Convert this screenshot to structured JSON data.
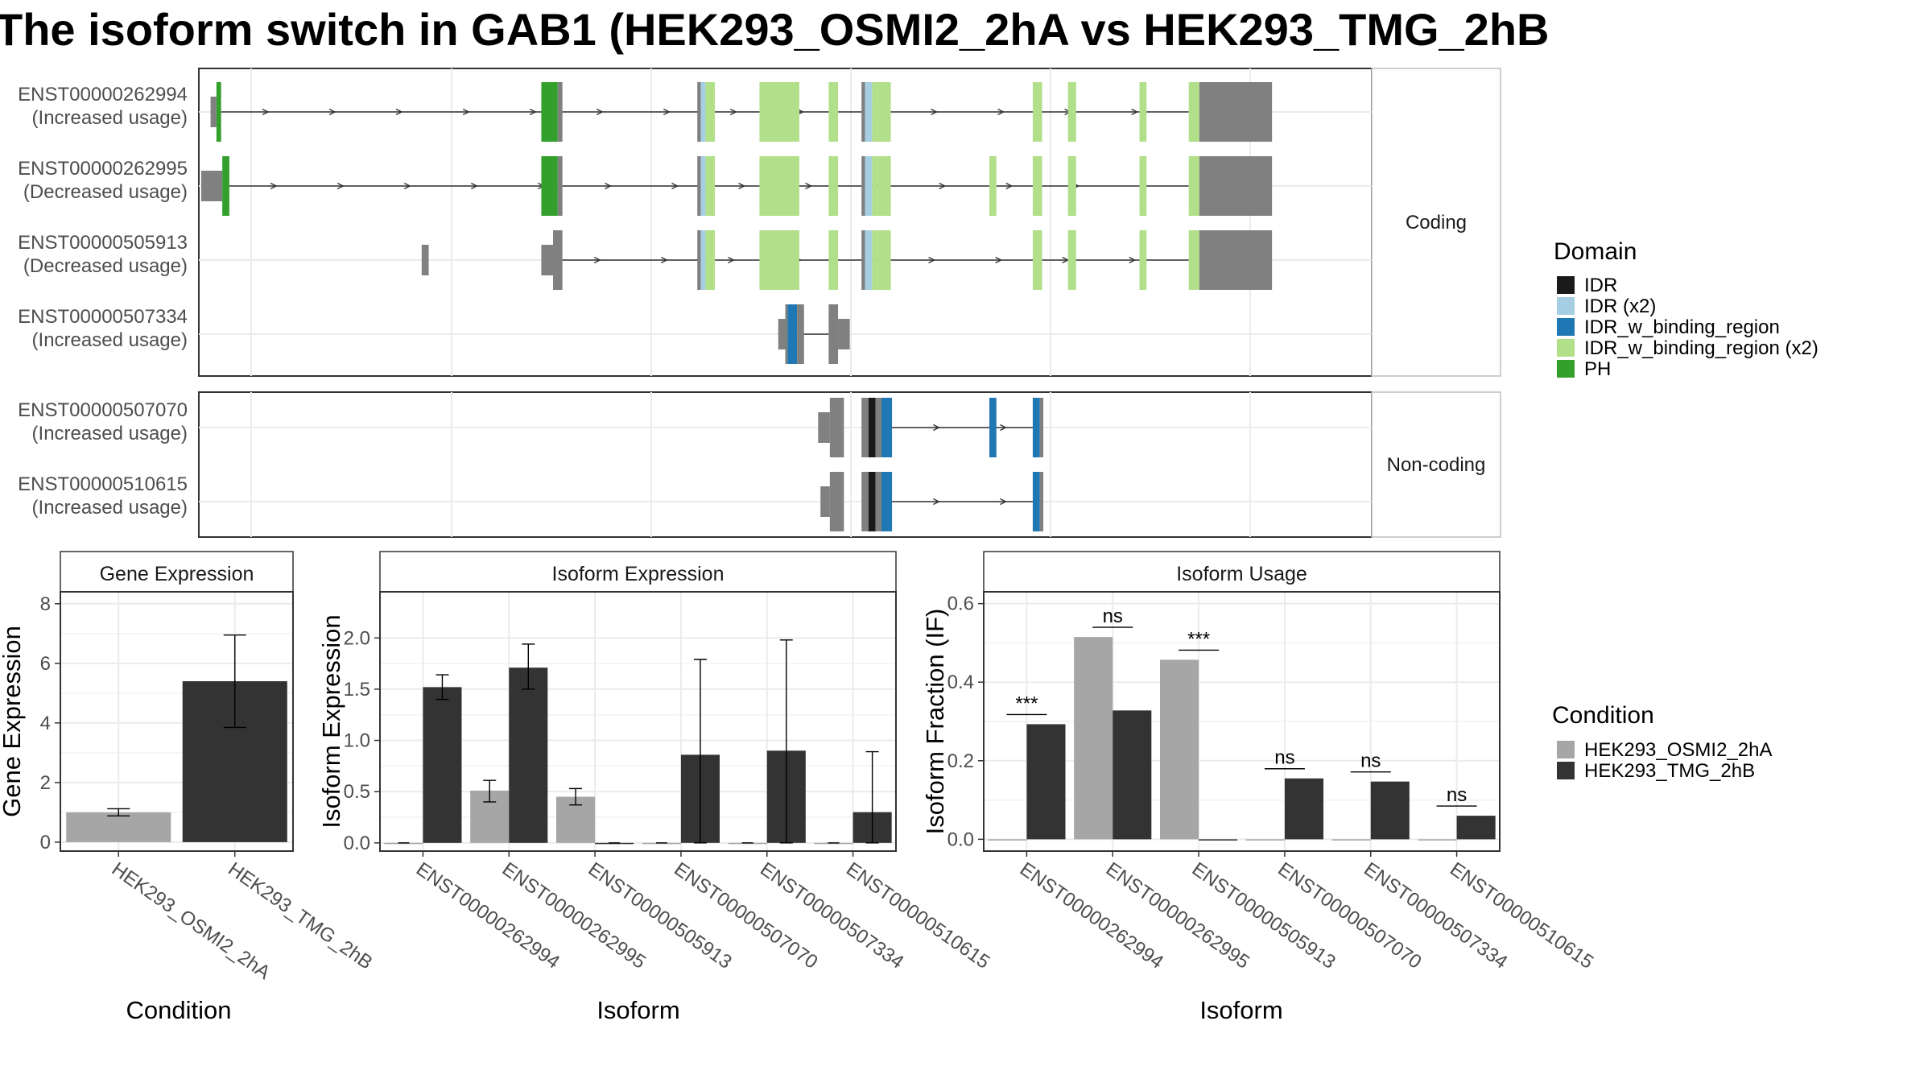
{
  "title": "The isoform switch in GAB1 (HEK293_OSMI2_2hA vs HEK293_TMG_2hB",
  "colors": {
    "IDR": "#1a1a1a",
    "IDR (x2)": "#a6cee3",
    "IDR_w_binding_region": "#1f78b4",
    "IDR_w_binding_region (x2)": "#b2df8a",
    "PH": "#33a02c",
    "utr": "#808080",
    "cond1": "#a6a6a6",
    "cond2": "#333333"
  },
  "structure": {
    "facets": [
      {
        "label": "Coding",
        "isoforms": [
          {
            "id": "ENST00000262994",
            "note": "(Increased usage)",
            "exons": [
              {
                "s": 10,
                "e": 15,
                "c": "utr",
                "t": "thin"
              },
              {
                "s": 15,
                "e": 19,
                "c": "PH"
              },
              {
                "s": 292,
                "e": 306,
                "c": "PH"
              },
              {
                "s": 306,
                "e": 310,
                "c": "utr"
              },
              {
                "s": 425,
                "e": 428,
                "c": "utr"
              },
              {
                "s": 428,
                "e": 432,
                "c": "IDR (x2)"
              },
              {
                "s": 432,
                "e": 440,
                "c": "IDR_w_binding_region (x2)"
              },
              {
                "s": 478,
                "e": 512,
                "c": "IDR_w_binding_region (x2)"
              },
              {
                "s": 537,
                "e": 545,
                "c": "IDR_w_binding_region (x2)"
              },
              {
                "s": 565,
                "e": 568,
                "c": "utr"
              },
              {
                "s": 568,
                "e": 574,
                "c": "IDR (x2)"
              },
              {
                "s": 574,
                "e": 578,
                "c": "IDR_w_binding_region (x2)"
              },
              {
                "s": 578,
                "e": 590,
                "c": "IDR_w_binding_region (x2)"
              },
              {
                "s": 711,
                "e": 719,
                "c": "IDR_w_binding_region (x2)"
              },
              {
                "s": 741,
                "e": 748,
                "c": "IDR_w_binding_region (x2)"
              },
              {
                "s": 802,
                "e": 808,
                "c": "IDR_w_binding_region (x2)"
              },
              {
                "s": 844,
                "e": 853,
                "c": "IDR_w_binding_region (x2)"
              },
              {
                "s": 853,
                "e": 915,
                "c": "utr"
              }
            ],
            "span": [
              19,
              844
            ]
          },
          {
            "id": "ENST00000262995",
            "note": "(Decreased usage)",
            "exons": [
              {
                "s": 2,
                "e": 20,
                "c": "utr",
                "t": "thin"
              },
              {
                "s": 20,
                "e": 26,
                "c": "PH"
              },
              {
                "s": 292,
                "e": 306,
                "c": "PH"
              },
              {
                "s": 306,
                "e": 310,
                "c": "utr"
              },
              {
                "s": 425,
                "e": 428,
                "c": "utr"
              },
              {
                "s": 428,
                "e": 432,
                "c": "IDR (x2)"
              },
              {
                "s": 432,
                "e": 440,
                "c": "IDR_w_binding_region (x2)"
              },
              {
                "s": 478,
                "e": 512,
                "c": "IDR_w_binding_region (x2)"
              },
              {
                "s": 537,
                "e": 545,
                "c": "IDR_w_binding_region (x2)"
              },
              {
                "s": 565,
                "e": 568,
                "c": "utr"
              },
              {
                "s": 568,
                "e": 574,
                "c": "IDR (x2)"
              },
              {
                "s": 574,
                "e": 578,
                "c": "IDR_w_binding_region (x2)"
              },
              {
                "s": 578,
                "e": 590,
                "c": "IDR_w_binding_region (x2)"
              },
              {
                "s": 674,
                "e": 680,
                "c": "IDR_w_binding_region (x2)"
              },
              {
                "s": 711,
                "e": 719,
                "c": "IDR_w_binding_region (x2)"
              },
              {
                "s": 741,
                "e": 748,
                "c": "IDR_w_binding_region (x2)"
              },
              {
                "s": 802,
                "e": 808,
                "c": "IDR_w_binding_region (x2)"
              },
              {
                "s": 844,
                "e": 853,
                "c": "IDR_w_binding_region (x2)"
              },
              {
                "s": 853,
                "e": 915,
                "c": "utr"
              }
            ],
            "span": [
              26,
              844
            ]
          },
          {
            "id": "ENST00000505913",
            "note": "(Decreased usage)",
            "exons": [
              {
                "s": 190,
                "e": 196,
                "c": "utr",
                "t": "thin"
              },
              {
                "s": 292,
                "e": 302,
                "c": "utr",
                "t": "thin"
              },
              {
                "s": 302,
                "e": 310,
                "c": "utr"
              },
              {
                "s": 425,
                "e": 428,
                "c": "utr"
              },
              {
                "s": 428,
                "e": 432,
                "c": "IDR (x2)"
              },
              {
                "s": 432,
                "e": 440,
                "c": "IDR_w_binding_region (x2)"
              },
              {
                "s": 478,
                "e": 512,
                "c": "IDR_w_binding_region (x2)"
              },
              {
                "s": 537,
                "e": 545,
                "c": "IDR_w_binding_region (x2)"
              },
              {
                "s": 565,
                "e": 568,
                "c": "utr"
              },
              {
                "s": 568,
                "e": 574,
                "c": "IDR (x2)"
              },
              {
                "s": 574,
                "e": 578,
                "c": "IDR_w_binding_region (x2)"
              },
              {
                "s": 578,
                "e": 590,
                "c": "IDR_w_binding_region (x2)"
              },
              {
                "s": 711,
                "e": 719,
                "c": "IDR_w_binding_region (x2)"
              },
              {
                "s": 741,
                "e": 748,
                "c": "IDR_w_binding_region (x2)"
              },
              {
                "s": 802,
                "e": 808,
                "c": "IDR_w_binding_region (x2)"
              },
              {
                "s": 844,
                "e": 853,
                "c": "IDR_w_binding_region (x2)"
              },
              {
                "s": 853,
                "e": 915,
                "c": "utr"
              }
            ],
            "span": [
              302,
              844
            ]
          },
          {
            "id": "ENST00000507334",
            "note": "(Increased usage)",
            "exons": [
              {
                "s": 494,
                "e": 500,
                "c": "utr",
                "t": "thin"
              },
              {
                "s": 500,
                "e": 502,
                "c": "utr"
              },
              {
                "s": 502,
                "e": 510,
                "c": "IDR_w_binding_region"
              },
              {
                "s": 510,
                "e": 516,
                "c": "utr"
              },
              {
                "s": 537,
                "e": 545,
                "c": "utr"
              },
              {
                "s": 545,
                "e": 555,
                "c": "utr",
                "t": "thin"
              }
            ],
            "span": [
              516,
              537
            ]
          }
        ]
      },
      {
        "label": "Non-coding",
        "isoforms": [
          {
            "id": "ENST00000507070",
            "note": "(Increased usage)",
            "exons": [
              {
                "s": 528,
                "e": 538,
                "c": "utr",
                "t": "thin"
              },
              {
                "s": 538,
                "e": 550,
                "c": "utr"
              },
              {
                "s": 565,
                "e": 571,
                "c": "utr"
              },
              {
                "s": 571,
                "e": 577,
                "c": "IDR"
              },
              {
                "s": 577,
                "e": 582,
                "c": "utr"
              },
              {
                "s": 582,
                "e": 591,
                "c": "IDR_w_binding_region"
              },
              {
                "s": 674,
                "e": 680,
                "c": "IDR_w_binding_region"
              },
              {
                "s": 711,
                "e": 717,
                "c": "IDR_w_binding_region"
              },
              {
                "s": 717,
                "e": 720,
                "c": "utr"
              }
            ],
            "span": [
              591,
              711
            ]
          },
          {
            "id": "ENST00000510615",
            "note": "(Increased usage)",
            "exons": [
              {
                "s": 530,
                "e": 538,
                "c": "utr",
                "t": "thin"
              },
              {
                "s": 538,
                "e": 550,
                "c": "utr"
              },
              {
                "s": 565,
                "e": 571,
                "c": "utr"
              },
              {
                "s": 571,
                "e": 577,
                "c": "IDR"
              },
              {
                "s": 577,
                "e": 582,
                "c": "utr"
              },
              {
                "s": 582,
                "e": 591,
                "c": "IDR_w_binding_region"
              },
              {
                "s": 711,
                "e": 717,
                "c": "IDR_w_binding_region"
              },
              {
                "s": 717,
                "e": 720,
                "c": "utr"
              }
            ],
            "span": [
              591,
              711
            ]
          }
        ]
      }
    ]
  },
  "legend_domain": {
    "title": "Domain",
    "items": [
      "IDR",
      "IDR (x2)",
      "IDR_w_binding_region",
      "IDR_w_binding_region (x2)",
      "PH"
    ]
  },
  "legend_condition": {
    "title": "Condition",
    "items": [
      "HEK293_OSMI2_2hA",
      "HEK293_TMG_2hB"
    ]
  },
  "chart_data": [
    {
      "type": "bar",
      "title": "Gene Expression",
      "xlabel": "Condition",
      "ylabel": "Gene Expression",
      "ylim": [
        -0.3,
        8.4
      ],
      "yticks": [
        0,
        2,
        4,
        6,
        8
      ],
      "categories": [
        "HEK293_OSMI2_2hA",
        "HEK293_TMG_2hB"
      ],
      "values": [
        1.0,
        5.4
      ],
      "err_low": [
        0.88,
        3.85
      ],
      "err_high": [
        1.12,
        6.95
      ]
    },
    {
      "type": "bar",
      "title": "Isoform Expression",
      "xlabel": "Isoform",
      "ylabel": "Isoform Expression",
      "ylim": [
        -0.08,
        2.45
      ],
      "yticks": [
        0.0,
        0.5,
        1.0,
        1.5,
        2.0
      ],
      "yticklabels": [
        "0.0",
        "0.5",
        "1.0",
        "1.5",
        "2.0"
      ],
      "categories": [
        "ENST00000262994",
        "ENST00000262995",
        "ENST00000505913",
        "ENST00000507070",
        "ENST00000507334",
        "ENST00000510615"
      ],
      "series": [
        {
          "name": "HEK293_OSMI2_2hA",
          "values": [
            0.0,
            0.51,
            0.45,
            0.0,
            0.0,
            0.0
          ],
          "err_low": [
            0.0,
            0.4,
            0.37,
            0.0,
            0.0,
            0.0
          ],
          "err_high": [
            0.0,
            0.61,
            0.53,
            0.0,
            0.0,
            0.0
          ]
        },
        {
          "name": "HEK293_TMG_2hB",
          "values": [
            1.52,
            1.71,
            0.0,
            0.86,
            0.9,
            0.3
          ],
          "err_low": [
            1.4,
            1.5,
            0.0,
            0.0,
            0.0,
            0.0
          ],
          "err_high": [
            1.64,
            1.94,
            0.0,
            1.79,
            1.98,
            0.89
          ]
        }
      ]
    },
    {
      "type": "bar",
      "title": "Isoform Usage",
      "xlabel": "Isoform",
      "ylabel": "Isoform Fraction (IF)",
      "ylim": [
        -0.03,
        0.63
      ],
      "yticks": [
        0.0,
        0.2,
        0.4,
        0.6
      ],
      "yticklabels": [
        "0.0",
        "0.2",
        "0.4",
        "0.6"
      ],
      "categories": [
        "ENST00000262994",
        "ENST00000262995",
        "ENST00000505913",
        "ENST00000507070",
        "ENST00000507334",
        "ENST00000510615"
      ],
      "series": [
        {
          "name": "HEK293_OSMI2_2hA",
          "values": [
            0.0,
            0.515,
            0.457,
            0.0,
            0.0,
            0.0
          ]
        },
        {
          "name": "HEK293_TMG_2hB",
          "values": [
            0.293,
            0.328,
            0.0,
            0.155,
            0.147,
            0.06
          ]
        }
      ],
      "significance": [
        "***",
        "ns",
        "***",
        "ns",
        "ns",
        "ns"
      ]
    }
  ]
}
